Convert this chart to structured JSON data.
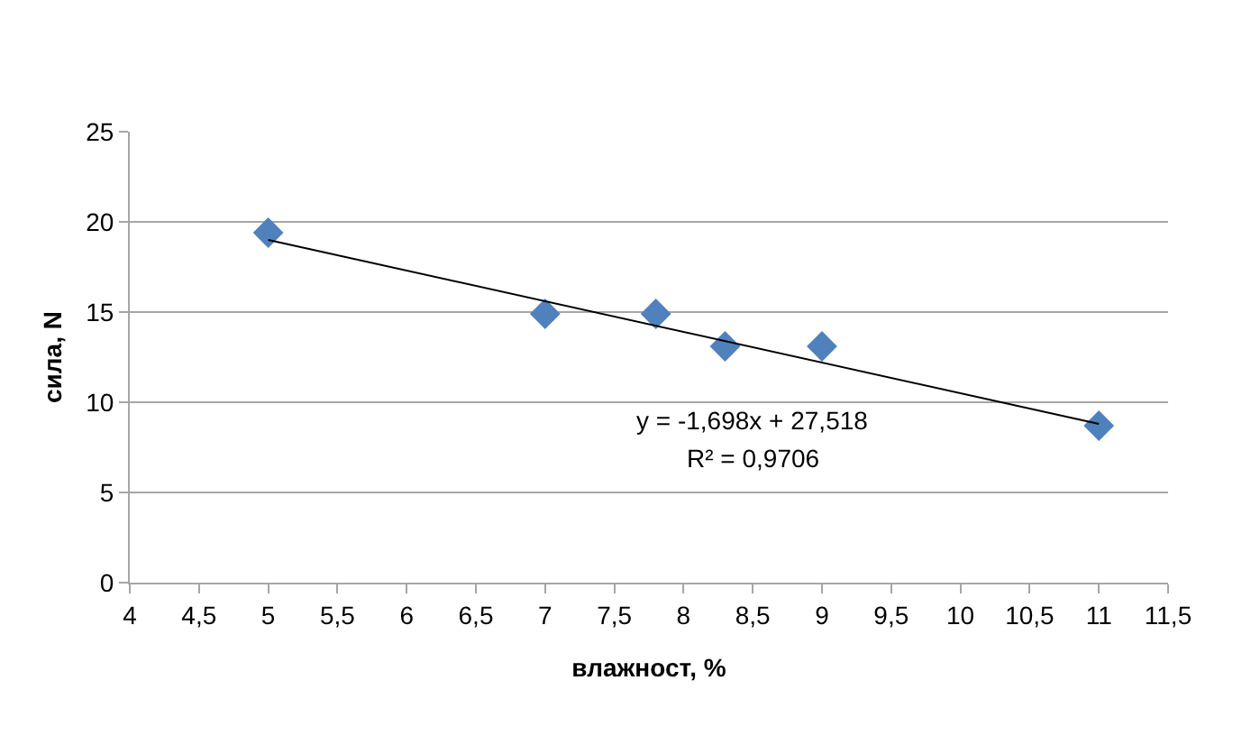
{
  "chart_data": {
    "type": "scatter",
    "xlabel": "влажност, %",
    "ylabel": "сила, N",
    "marker": "diamond",
    "grid": "y",
    "xlim": [
      4,
      11.5
    ],
    "xticks": [
      4,
      {
        "value": 4.5,
        "label": "4,5"
      },
      5,
      {
        "value": 5.5,
        "label": "5,5"
      },
      6,
      {
        "value": 6.5,
        "label": "6,5"
      },
      7,
      {
        "value": 7.5,
        "label": "7,5"
      },
      8,
      {
        "value": 8.5,
        "label": "8,5"
      },
      9,
      {
        "value": 9.5,
        "label": "9,5"
      },
      10,
      {
        "value": 10.5,
        "label": "10,5"
      },
      11,
      {
        "value": 11.5,
        "label": "11,5"
      }
    ],
    "ylim": [
      0,
      25
    ],
    "yticks": [
      0,
      5,
      10,
      15,
      20,
      25
    ],
    "series": [
      {
        "color": "#4f81bd",
        "x": [
          5,
          7,
          7.8,
          8.3,
          9,
          11
        ],
        "values": [
          19.4,
          14.9,
          14.9,
          13.1,
          13.1,
          8.7
        ]
      },
      {
        "type": "line",
        "marker": "none",
        "color": "#000000",
        "x": [
          5,
          11
        ],
        "values": [
          19.0,
          8.8
        ]
      }
    ],
    "annotations": [
      "y = -1,698x + 27,518",
      "R² = 0,9706"
    ]
  }
}
